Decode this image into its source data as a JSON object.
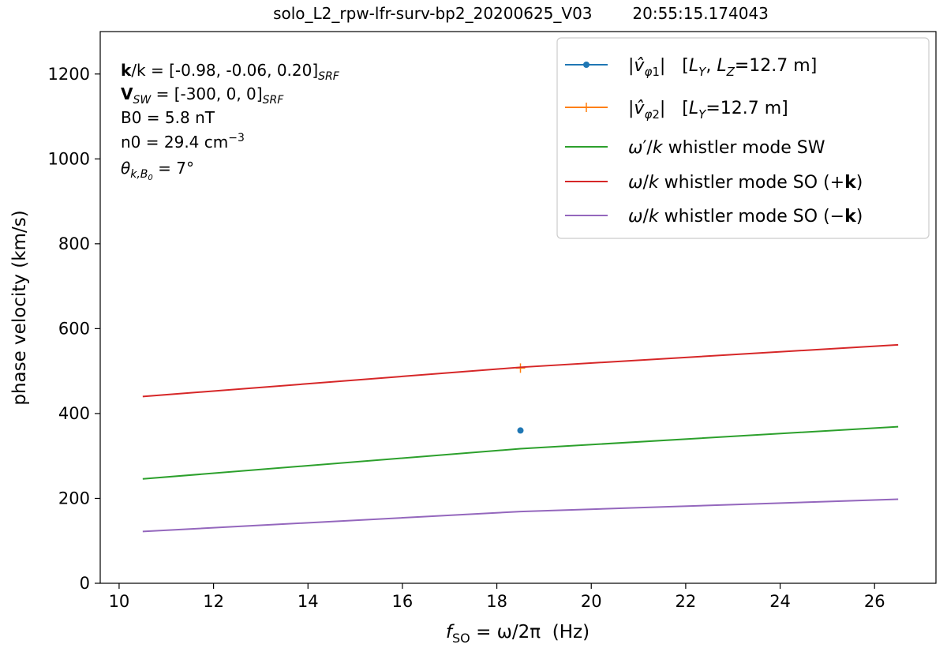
{
  "chart_data": {
    "type": "line",
    "title": "solo_L2_rpw-lfr-surv-bp2_20200625_V03        20:55:15.174043",
    "xlabel": {
      "italic": "f",
      "sub": "SO",
      "rest": " = ω/2π  (Hz)"
    },
    "ylabel": "phase velocity (km/s)",
    "xlim": [
      9.6,
      27.3
    ],
    "ylim": [
      0,
      1300
    ],
    "xticks": [
      10,
      12,
      14,
      16,
      18,
      20,
      22,
      24,
      26
    ],
    "yticks": [
      0,
      200,
      400,
      600,
      800,
      1000,
      1200
    ],
    "grid": false,
    "legend_position": "top-right",
    "annotations": [
      {
        "bold": "k",
        "text": "/k = [-0.98, -0.06, 0.20]",
        "sub": "SRF"
      },
      {
        "bold": "V",
        "sub1": "SW",
        "text": " = [-300, 0, 0]",
        "sub": "SRF"
      },
      {
        "text": "B0 = 5.8 nT"
      },
      {
        "text": "n0 = 29.4 cm",
        "sup": "−3"
      },
      {
        "text": "θ",
        "sub": "k,B",
        "subsub": "0",
        "rest": " = 7°"
      }
    ],
    "series": [
      {
        "name": "|v̂φ1|   [LY, LZ=12.7 m]",
        "kind": "point",
        "marker": "dot",
        "color": "#1f77b4",
        "x": [
          18.5
        ],
        "y": [
          360
        ]
      },
      {
        "name": "|v̂φ2|   [LY=12.7 m]",
        "kind": "point",
        "marker": "plus",
        "color": "#ff7f0e",
        "x": [
          18.5
        ],
        "y": [
          507
        ]
      },
      {
        "name": "ω′/k whistler mode SW",
        "kind": "line",
        "color": "#2ca02c",
        "x": [
          10.5,
          18.5,
          26.5
        ],
        "y": [
          246,
          317,
          369
        ]
      },
      {
        "name": "ω/k whistler mode SO (+k)",
        "kind": "line",
        "color": "#d62728",
        "x": [
          10.5,
          18.5,
          26.5
        ],
        "y": [
          440,
          509,
          562
        ]
      },
      {
        "name": "ω/k whistler mode SO (−k)",
        "kind": "line",
        "color": "#9467bd",
        "x": [
          10.5,
          18.5,
          26.5
        ],
        "y": [
          122,
          169,
          198
        ]
      }
    ]
  }
}
